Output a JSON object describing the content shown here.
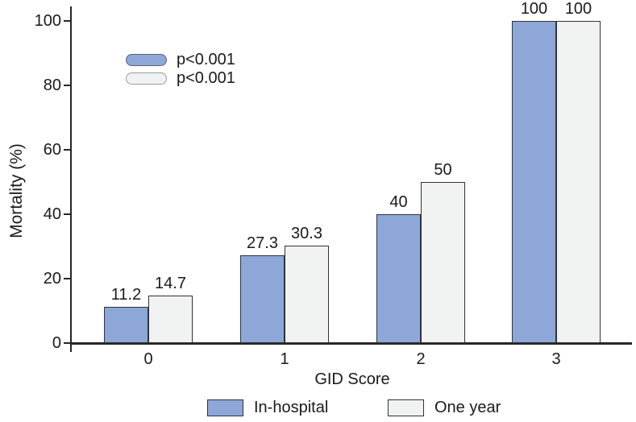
{
  "chart_data": {
    "type": "bar",
    "title": "",
    "categories": [
      "0",
      "1",
      "2",
      "3"
    ],
    "series": [
      {
        "name": "In-hospital",
        "color": "#8DA7D8",
        "values": [
          11.2,
          27.3,
          40,
          100
        ],
        "value_labels": [
          "11.2",
          "27.3",
          "40",
          "100"
        ],
        "p_value": "p<0.001"
      },
      {
        "name": "One year",
        "color": "#F1F2F2",
        "values": [
          14.7,
          30.3,
          50,
          100
        ],
        "value_labels": [
          "14.7",
          "30.3",
          "50",
          "100"
        ],
        "p_value": "p<0.001"
      }
    ],
    "xlabel": "GID Score",
    "ylabel": "Mortality (%)",
    "ylim": [
      0,
      100
    ],
    "yticks": [
      0,
      20,
      40,
      60,
      80,
      100
    ],
    "grid": false,
    "legend_position": "bottom",
    "bar_border_color": "#333333",
    "axis_color": "#262626",
    "text_color": "#1a1a1a"
  }
}
